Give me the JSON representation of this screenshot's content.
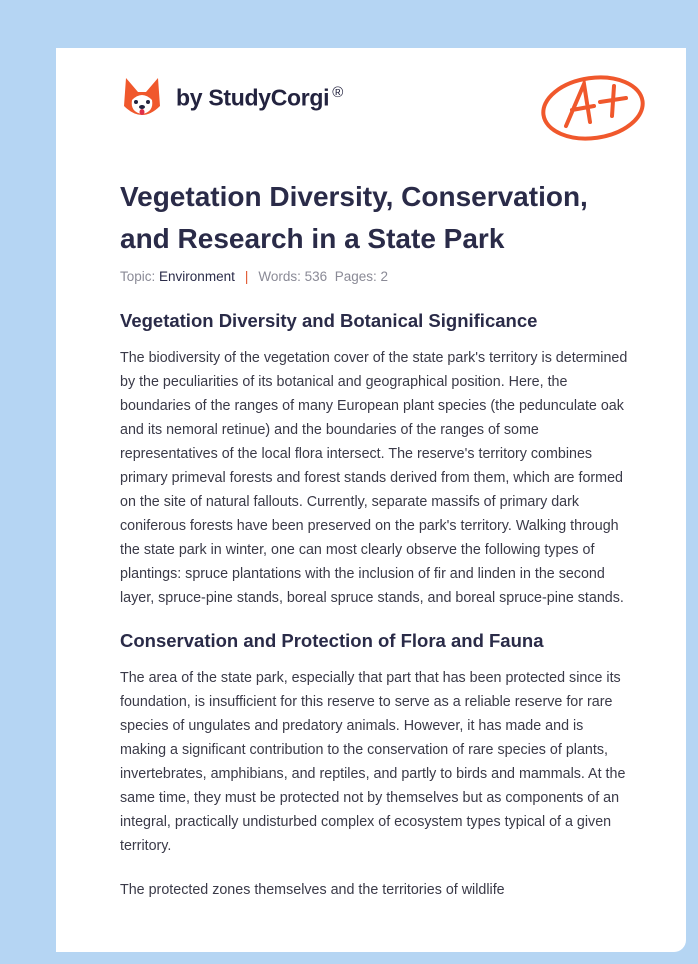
{
  "brand": {
    "name": "by StudyCorgi",
    "registered": "®",
    "grade_badge": "A+"
  },
  "title": "Vegetation Diversity, Conservation, and Research in a State Park",
  "meta": {
    "topic_label": "Topic:",
    "topic": "Environment",
    "separator": "|",
    "words_label": "Words:",
    "words": "536",
    "pages_label": "Pages:",
    "pages": "2"
  },
  "sections": [
    {
      "heading": "Vegetation Diversity and Botanical Significance",
      "paragraphs": [
        "The biodiversity of the vegetation cover of the state park's territory is determined by the peculiarities of its botanical and geographical position. Here, the boundaries of the ranges of many European plant species (the pedunculate oak and its nemoral retinue) and the boundaries of the ranges of some representatives of the local flora intersect. The reserve's territory combines primary primeval forests and forest stands derived from them, which are formed on the site of natural fallouts. Currently, separate massifs of primary dark coniferous forests have been preserved on the park's territory. Walking through the state park in winter, one can most clearly observe the following types of plantings: spruce plantations with the inclusion of fir and linden in the second layer, spruce-pine stands, boreal spruce stands, and boreal spruce-pine stands."
      ]
    },
    {
      "heading": "Conservation and Protection of Flora and Fauna",
      "paragraphs": [
        "The area of the state park, especially that part that has been protected since its foundation, is insufficient for this reserve to serve as a reliable reserve for rare species of ungulates and predatory animals. However, it has made and is making a significant contribution to the conservation of rare species of plants, invertebrates, amphibians, and reptiles, and partly to birds and mammals. At the same time, they must be protected not by themselves but as components of an integral, practically undisturbed complex of ecosystem types typical of a given territory.",
        "The protected zones themselves and the territories of wildlife"
      ]
    }
  ]
}
